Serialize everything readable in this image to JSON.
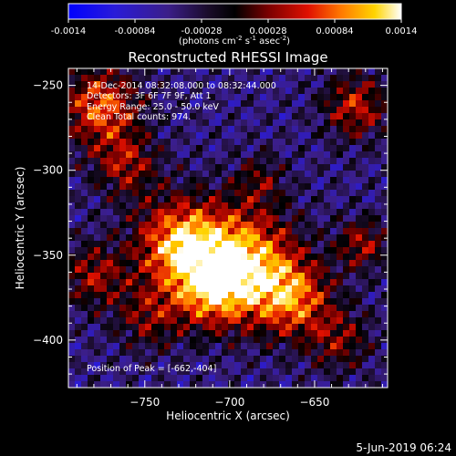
{
  "colorbar": {
    "ticks": [
      "-0.0014",
      "-0.00084",
      "-0.00028",
      "0.00028",
      "0.00084",
      "0.0014"
    ],
    "min": -0.0014,
    "max": 0.0014,
    "unit_label": "(photons cm",
    "unit_exp1": "-2",
    "unit_mid": " s",
    "unit_exp2": "-1",
    "unit_mid2": " asec",
    "unit_exp3": "-2",
    "unit_end": ")"
  },
  "title": "Reconstructed RHESSI Image",
  "annotations": {
    "time": "14-Dec-2014 08:32:08.000 to 08:32:44.000",
    "detectors": "Detectors: 3F 6F 7F 9F, Att 1",
    "energy": "Energy Range: 25.0 - 50.0 keV",
    "clean": "Clean     Total counts: 974.",
    "peak": "Position of Peak = [-662,-404]"
  },
  "footer": "5-Jun-2019 06:24",
  "chart_data": {
    "type": "heatmap",
    "title": "Reconstructed RHESSI Image",
    "xlabel": "Heliocentric X (arcsec)",
    "ylabel": "Heliocentric Y (arcsec)",
    "xlim": [
      -795,
      -607
    ],
    "ylim": [
      -428,
      -240
    ],
    "xticks": [
      -750,
      -700,
      -650
    ],
    "yticks": [
      -250,
      -300,
      -350,
      -400
    ],
    "xtick_labels": [
      "−750",
      "−700",
      "−650"
    ],
    "ytick_labels": [
      "−250",
      "−300",
      "−350",
      "−400"
    ],
    "colorscale": [
      "#0000ff",
      "#5c2cc6",
      "#2a1b55",
      "#000000",
      "#6a0000",
      "#d40000",
      "#ff5a00",
      "#ffb000",
      "#ffff6a",
      "#ffffff"
    ],
    "peak_position": [
      -662,
      -404
    ],
    "value_range": [
      -0.0014,
      0.0014
    ]
  }
}
